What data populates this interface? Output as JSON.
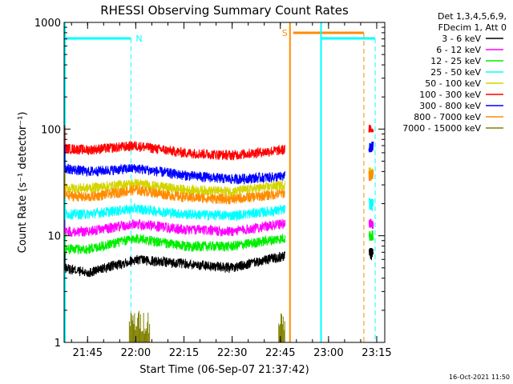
{
  "chart_data": {
    "type": "line",
    "title": "RHESSI Observing Summary Count Rates",
    "xlabel": "Start Time (06-Sep-07 21:37:42)",
    "ylabel": "Count Rate (s⁻¹ detector⁻¹)",
    "y_scale": "log",
    "ylim": [
      1,
      1000
    ],
    "xlim": [
      "21:37:42",
      "23:17:30"
    ],
    "x_ticks": [
      "21:45",
      "22:00",
      "22:15",
      "22:30",
      "22:45",
      "23:00",
      "23:15"
    ],
    "y_ticks": [
      "1",
      "10",
      "100",
      "1000"
    ],
    "legend_header": [
      "Det 1,3,4,5,6,9,",
      "FDecim 1, Att 0"
    ],
    "legend_position": "top-right",
    "footer_date": "16-Oct-2021 11:50",
    "annotations": [
      {
        "text": "N",
        "meaning": "night",
        "x_start": "21:37:42",
        "x_end": "21:58:30",
        "color": "#00ffff"
      },
      {
        "text": "S",
        "meaning": "SAA",
        "x_start": "22:48:00",
        "x_end": "23:11:00",
        "color": "#ff8c00"
      }
    ],
    "series": [
      {
        "name": "3 - 6 keV",
        "color": "#000000",
        "points": [
          [
            "21:38",
            5
          ],
          [
            "21:45",
            4.5
          ],
          [
            "22:00",
            6
          ],
          [
            "22:15",
            5.5
          ],
          [
            "22:30",
            5
          ],
          [
            "22:46",
            6.5
          ],
          [
            "23:13",
            7
          ]
        ]
      },
      {
        "name": "6 - 12 keV",
        "color": "#ff00ff",
        "points": [
          [
            "21:38",
            11
          ],
          [
            "21:45",
            11
          ],
          [
            "22:00",
            13
          ],
          [
            "22:15",
            11.5
          ],
          [
            "22:30",
            11
          ],
          [
            "22:46",
            13
          ],
          [
            "23:13",
            13
          ]
        ]
      },
      {
        "name": "12 - 25 keV",
        "color": "#00ee00",
        "points": [
          [
            "21:38",
            7.5
          ],
          [
            "21:45",
            7.5
          ],
          [
            "22:00",
            9.5
          ],
          [
            "22:15",
            8
          ],
          [
            "22:30",
            8
          ],
          [
            "22:46",
            9.5
          ],
          [
            "23:13",
            10
          ]
        ]
      },
      {
        "name": "25 - 50 keV",
        "color": "#00ffff",
        "points": [
          [
            "21:38",
            16
          ],
          [
            "21:45",
            16
          ],
          [
            "22:00",
            18
          ],
          [
            "22:15",
            16
          ],
          [
            "22:30",
            15.5
          ],
          [
            "22:46",
            17.5
          ],
          [
            "23:13",
            20
          ]
        ]
      },
      {
        "name": "50 - 100 keV",
        "color": "#d4d400",
        "points": [
          [
            "21:38",
            28
          ],
          [
            "21:45",
            28
          ],
          [
            "22:00",
            31
          ],
          [
            "22:15",
            27
          ],
          [
            "22:30",
            26
          ],
          [
            "22:46",
            30
          ],
          [
            "23:13",
            40
          ]
        ]
      },
      {
        "name": "100 - 300 keV",
        "color": "#ff0000",
        "points": [
          [
            "21:38",
            66
          ],
          [
            "21:45",
            64
          ],
          [
            "22:00",
            70
          ],
          [
            "22:15",
            60
          ],
          [
            "22:30",
            57
          ],
          [
            "22:46",
            64
          ],
          [
            "23:13",
            100
          ]
        ]
      },
      {
        "name": "300 - 800 keV",
        "color": "#0000ff",
        "points": [
          [
            "21:38",
            43
          ],
          [
            "21:45",
            40
          ],
          [
            "22:00",
            43
          ],
          [
            "22:15",
            37
          ],
          [
            "22:30",
            34
          ],
          [
            "22:46",
            36
          ],
          [
            "23:13",
            68
          ]
        ]
      },
      {
        "name": "800 - 7000 keV",
        "color": "#ff8c00",
        "points": [
          [
            "21:38",
            24
          ],
          [
            "21:45",
            23
          ],
          [
            "22:00",
            27
          ],
          [
            "22:15",
            23
          ],
          [
            "22:30",
            22
          ],
          [
            "22:46",
            25
          ],
          [
            "23:13",
            37
          ]
        ]
      },
      {
        "name": "7000 - 15000 keV",
        "color": "#808000",
        "points": [
          [
            "21:58",
            1
          ],
          [
            "22:05",
            1
          ],
          [
            "22:45",
            1
          ]
        ]
      }
    ]
  }
}
